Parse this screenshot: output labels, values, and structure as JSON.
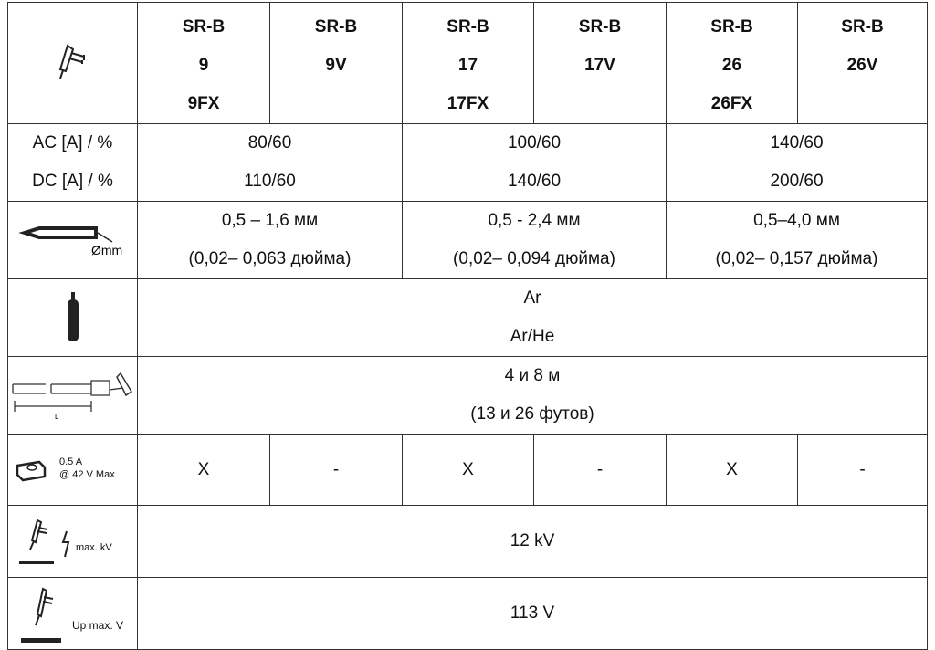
{
  "header": {
    "models": [
      {
        "lines": [
          "SR-B",
          "9",
          "9FX"
        ]
      },
      {
        "lines": [
          "SR-B",
          "9V"
        ]
      },
      {
        "lines": [
          "SR-B",
          "17",
          "17FX"
        ]
      },
      {
        "lines": [
          "SR-B",
          "17V"
        ]
      },
      {
        "lines": [
          "SR-B",
          "26",
          "26FX"
        ]
      },
      {
        "lines": [
          "SR-B",
          "26V"
        ]
      }
    ]
  },
  "rows": {
    "current": {
      "label_ac": "AC [A] / %",
      "label_dc": "DC [A] / %",
      "ac": [
        "80/60",
        "100/60",
        "140/60"
      ],
      "dc": [
        "110/60",
        "140/60",
        "200/60"
      ]
    },
    "electrode": {
      "unit_label": "Ømm",
      "mm": [
        "0,5 – 1,6 мм",
        "0,5 - 2,4 мм",
        "0,5–4,0 мм"
      ],
      "inch": [
        "(0,02– 0,063 дюйма)",
        "(0,02– 0,094 дюйма)",
        "(0,02– 0,157 дюйма)"
      ]
    },
    "gas": {
      "values": [
        "Ar",
        "Ar/He"
      ]
    },
    "length": {
      "icon_label": "L",
      "values": [
        "4 и 8 м",
        "(13 и 26 футов)"
      ]
    },
    "switch": {
      "label1": "0.5 A",
      "label2": "@ 42 V Max",
      "values": [
        "X",
        "-",
        "X",
        "-",
        "X",
        "-"
      ]
    },
    "voltage_kv": {
      "label": "max. kV",
      "value": "12 kV"
    },
    "voltage_v": {
      "label": "Up max. V",
      "value": "113 V"
    }
  }
}
